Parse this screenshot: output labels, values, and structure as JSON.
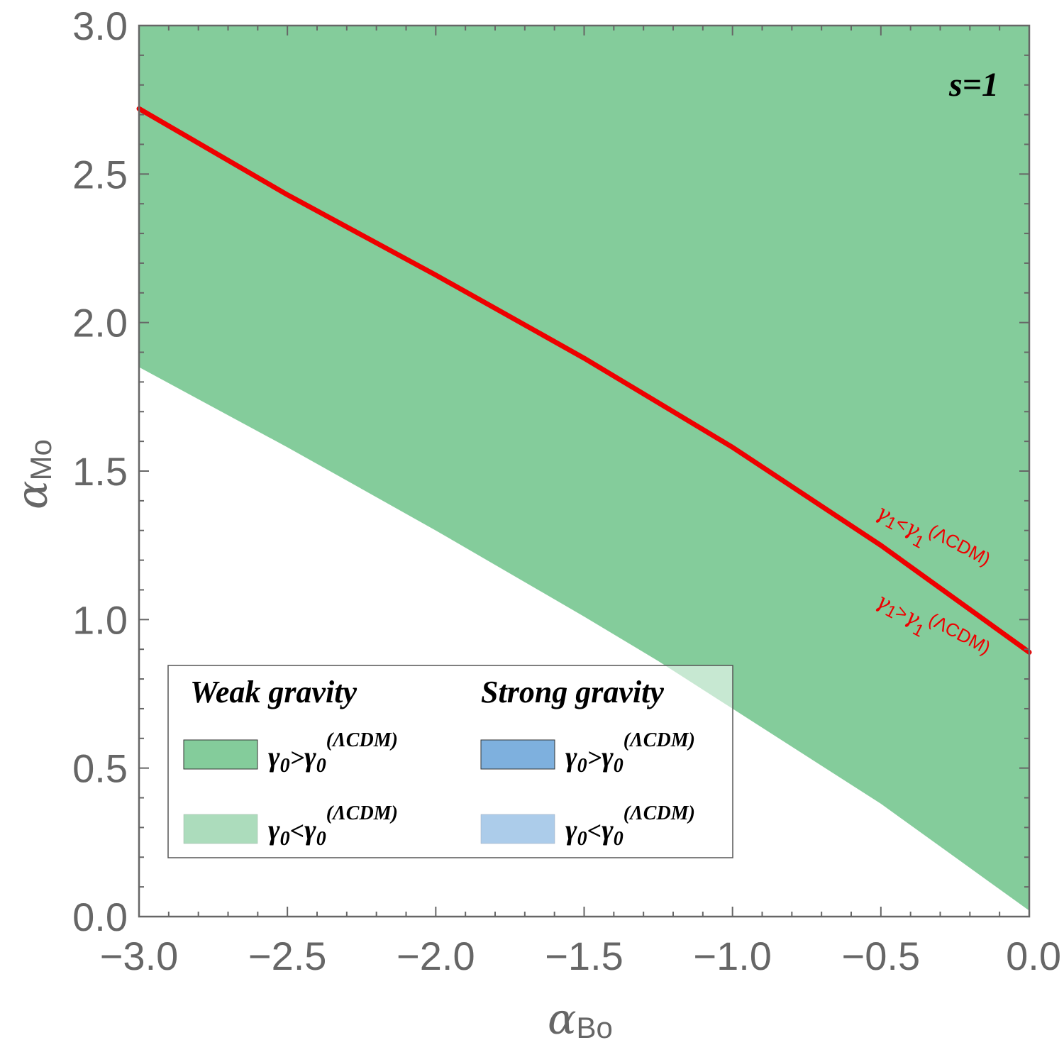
{
  "chart_data": {
    "type": "area",
    "panel_label": "s=1",
    "xlabel": {
      "symbol": "α",
      "sub": "Bo"
    },
    "ylabel": {
      "symbol": "α",
      "sub": "Mo"
    },
    "xlim": [
      -3.0,
      0.0
    ],
    "ylim": [
      0.0,
      3.0
    ],
    "x_ticks": [
      -3.0,
      -2.5,
      -2.0,
      -1.5,
      -1.0,
      -0.5,
      0.0
    ],
    "x_tick_labels": [
      "−3.0",
      "−2.5",
      "−2.0",
      "−1.5",
      "−1.0",
      "−0.5",
      "0.0"
    ],
    "y_ticks": [
      0.0,
      0.5,
      1.0,
      1.5,
      2.0,
      2.5,
      3.0
    ],
    "y_tick_labels": [
      "0.0",
      "0.5",
      "1.0",
      "1.5",
      "2.0",
      "2.5",
      "3.0"
    ],
    "grid": false,
    "colors": {
      "weak_above": "#84cc9b",
      "weak_below": "#acdcbc",
      "strong_above": "#7eb0de",
      "strong_below": "#acccea",
      "curve": "#ee0000",
      "frame": "#666666"
    },
    "series": [
      {
        "name": "Weak gravity, γ0 > γ0(ΛCDM) region lower boundary",
        "kind": "region_lower_boundary",
        "x": [
          -3.0,
          -2.5,
          -2.0,
          -1.5,
          -1.25,
          -1.0,
          -0.5,
          -0.25,
          0.0
        ],
        "y": [
          1.85,
          1.58,
          1.3,
          1.01,
          0.86,
          0.7,
          0.38,
          0.2,
          0.02
        ]
      },
      {
        "name": "γ1 = γ1(ΛCDM) boundary",
        "kind": "curve",
        "x": [
          -3.0,
          -2.5,
          -2.0,
          -1.5,
          -1.0,
          -0.5,
          0.0
        ],
        "y": [
          2.72,
          2.43,
          2.16,
          1.88,
          1.58,
          1.25,
          0.89
        ]
      }
    ],
    "legend": {
      "placement": "bottom-left",
      "headings": [
        "Weak gravity",
        "Strong gravity"
      ],
      "entries": [
        {
          "base": "γ",
          "sub": "0",
          "op": ">",
          "ref_base": "γ",
          "ref_sub": "0",
          "ref_sup": "(ΛCDM)",
          "color_key": "weak_above"
        },
        {
          "base": "γ",
          "sub": "0",
          "op": "<",
          "ref_base": "γ",
          "ref_sub": "0",
          "ref_sup": "(ΛCDM)",
          "color_key": "weak_below"
        },
        {
          "base": "γ",
          "sub": "0",
          "op": ">",
          "ref_base": "γ",
          "ref_sub": "0",
          "ref_sup": "(ΛCDM)",
          "color_key": "strong_above"
        },
        {
          "base": "γ",
          "sub": "0",
          "op": "<",
          "ref_base": "γ",
          "ref_sub": "0",
          "ref_sup": "(ΛCDM)",
          "color_key": "strong_below"
        }
      ]
    },
    "annotations": [
      {
        "base": "γ",
        "sub": "1",
        "op": "<",
        "ref_base": "γ",
        "ref_sub": "1",
        "ref_sup": "(ΛCDM)",
        "side": "above curve"
      },
      {
        "base": "γ",
        "sub": "1",
        "op": ">",
        "ref_base": "γ",
        "ref_sub": "1",
        "ref_sup": "(ΛCDM)",
        "side": "below curve"
      }
    ]
  }
}
